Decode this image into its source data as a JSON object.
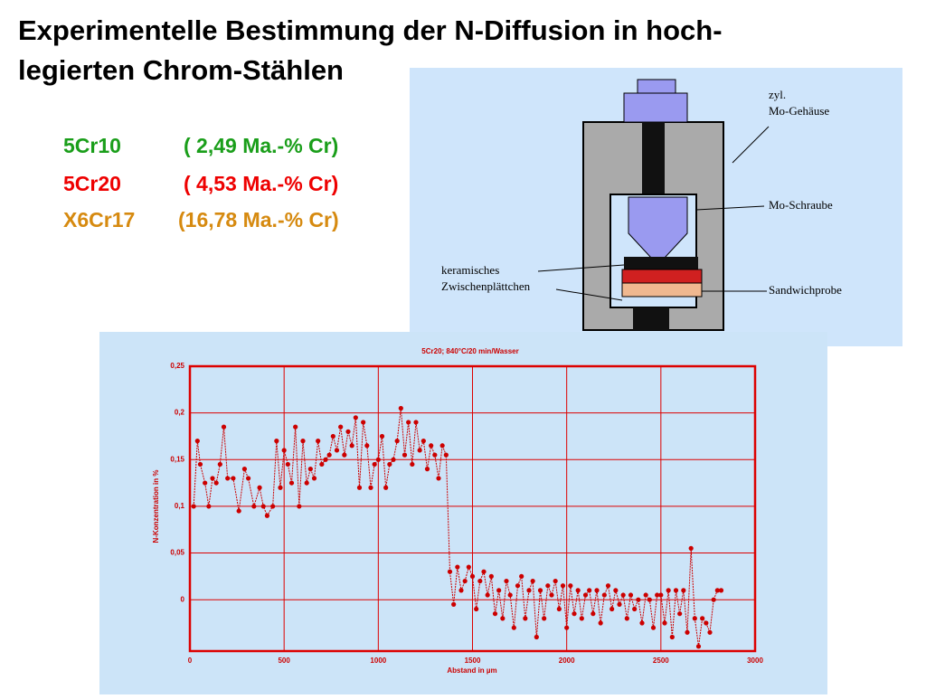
{
  "header": {
    "title_lines": [
      "Experimentelle Bestimmung der N-Diffusion in hoch-",
      "legierten Chrom-Stählen"
    ]
  },
  "alloys": [
    {
      "name": "5Cr10",
      "composition": "( 2,49 Ma.-% Cr)"
    },
    {
      "name": "5Cr20",
      "composition": "( 4,53 Ma.-% Cr)"
    },
    {
      "name": "X6Cr17",
      "composition": "(16,78 Ma.-% Cr)"
    }
  ],
  "diagram": {
    "labels": {
      "housing": [
        "zyl.",
        "Mo-Gehäuse"
      ],
      "screw": "Mo-Schraube",
      "ceramic": [
        "keramisches",
        "Zwischenplättchen"
      ],
      "sample": "Sandwichprobe"
    }
  },
  "chart_data": {
    "type": "line",
    "title": "5Cr20; 840°C/20 min/Wasser",
    "xlabel": "Abstand in µm",
    "ylabel": "N-Konzentration in %",
    "xlim": [
      0,
      3000
    ],
    "xticks": [
      0,
      500,
      1000,
      1500,
      2000,
      2500,
      3000
    ],
    "ylim": [
      -0.055,
      0.25
    ],
    "yticks": [
      {
        "value": 0,
        "label": "0"
      },
      {
        "value": 0.05,
        "label": "0,05"
      },
      {
        "value": 0.1,
        "label": "0,1"
      },
      {
        "value": 0.15,
        "label": "0,15"
      },
      {
        "value": 0.2,
        "label": "0,2"
      },
      {
        "value": 0.25,
        "label": "0,25"
      }
    ],
    "grid": true,
    "x": [
      20,
      40,
      55,
      80,
      100,
      120,
      140,
      160,
      180,
      200,
      230,
      260,
      290,
      310,
      340,
      370,
      390,
      410,
      440,
      460,
      480,
      500,
      520,
      540,
      560,
      580,
      600,
      620,
      640,
      660,
      680,
      700,
      720,
      740,
      760,
      780,
      800,
      820,
      840,
      860,
      880,
      900,
      920,
      940,
      960,
      980,
      1000,
      1020,
      1040,
      1060,
      1080,
      1100,
      1120,
      1140,
      1160,
      1180,
      1200,
      1220,
      1240,
      1260,
      1280,
      1300,
      1320,
      1340,
      1360,
      1380,
      1400,
      1420,
      1440,
      1460,
      1480,
      1500,
      1520,
      1540,
      1560,
      1580,
      1600,
      1620,
      1640,
      1660,
      1680,
      1700,
      1720,
      1740,
      1760,
      1780,
      1800,
      1820,
      1840,
      1860,
      1880,
      1900,
      1920,
      1940,
      1960,
      1980,
      2000,
      2020,
      2040,
      2060,
      2080,
      2100,
      2120,
      2140,
      2160,
      2180,
      2200,
      2220,
      2240,
      2260,
      2280,
      2300,
      2320,
      2340,
      2360,
      2380,
      2400,
      2420,
      2440,
      2460,
      2480,
      2500,
      2520,
      2540,
      2560,
      2580,
      2600,
      2620,
      2640,
      2660,
      2680,
      2700,
      2720,
      2740,
      2760,
      2780,
      2800,
      2820
    ],
    "series": [
      {
        "color": "#cc0000",
        "values": [
          0.1,
          0.17,
          0.145,
          0.125,
          0.1,
          0.13,
          0.125,
          0.145,
          0.185,
          0.13,
          0.13,
          0.095,
          0.14,
          0.13,
          0.1,
          0.12,
          0.1,
          0.09,
          0.1,
          0.17,
          0.12,
          0.16,
          0.145,
          0.125,
          0.185,
          0.1,
          0.17,
          0.125,
          0.14,
          0.13,
          0.17,
          0.145,
          0.15,
          0.155,
          0.175,
          0.16,
          0.185,
          0.155,
          0.18,
          0.165,
          0.195,
          0.12,
          0.19,
          0.165,
          0.12,
          0.145,
          0.15,
          0.175,
          0.12,
          0.145,
          0.15,
          0.17,
          0.205,
          0.155,
          0.19,
          0.145,
          0.19,
          0.16,
          0.17,
          0.14,
          0.165,
          0.155,
          0.13,
          0.165,
          0.155,
          0.03,
          -0.005,
          0.035,
          0.01,
          0.02,
          0.035,
          0.025,
          -0.01,
          0.02,
          0.03,
          0.005,
          0.025,
          -0.015,
          0.01,
          -0.02,
          0.02,
          0.005,
          -0.03,
          0.015,
          0.025,
          -0.02,
          0.01,
          0.02,
          -0.04,
          0.01,
          -0.02,
          0.015,
          0.005,
          0.02,
          -0.01,
          0.015,
          -0.03,
          0.015,
          -0.015,
          0.01,
          -0.02,
          0.005,
          0.01,
          -0.015,
          0.01,
          -0.025,
          0.005,
          0.015,
          -0.01,
          0.01,
          -0.005,
          0.005,
          -0.02,
          0.005,
          -0.01,
          0.0,
          -0.025,
          0.005,
          0.0,
          -0.03,
          0.005,
          0.005,
          -0.025,
          0.01,
          -0.04,
          0.01,
          -0.015,
          0.01,
          -0.035,
          0.055,
          -0.02,
          -0.05,
          -0.02,
          -0.025,
          -0.035,
          0.0,
          0.01,
          0.01
        ]
      }
    ]
  }
}
